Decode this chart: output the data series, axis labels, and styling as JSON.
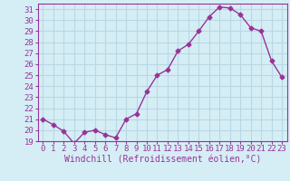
{
  "x": [
    0,
    1,
    2,
    3,
    4,
    5,
    6,
    7,
    8,
    9,
    10,
    11,
    12,
    13,
    14,
    15,
    16,
    17,
    18,
    19,
    20,
    21,
    22,
    23
  ],
  "y": [
    21.0,
    20.5,
    19.9,
    18.8,
    19.8,
    20.0,
    19.6,
    19.3,
    21.0,
    21.5,
    23.5,
    25.0,
    25.5,
    27.2,
    27.8,
    29.0,
    30.3,
    31.2,
    31.1,
    30.5,
    29.3,
    29.0,
    26.3,
    24.8
  ],
  "line_color": "#993399",
  "marker": "D",
  "marker_size": 2.5,
  "xlabel": "Windchill (Refroidissement éolien,°C)",
  "ylabel": "",
  "title": "",
  "xlim": [
    -0.5,
    23.5
  ],
  "ylim": [
    19,
    31.5
  ],
  "yticks": [
    19,
    20,
    21,
    22,
    23,
    24,
    25,
    26,
    27,
    28,
    29,
    30,
    31
  ],
  "xticks": [
    0,
    1,
    2,
    3,
    4,
    5,
    6,
    7,
    8,
    9,
    10,
    11,
    12,
    13,
    14,
    15,
    16,
    17,
    18,
    19,
    20,
    21,
    22,
    23
  ],
  "bg_color": "#d5eef5",
  "grid_color": "#b8d8e4",
  "font_color": "#993399",
  "font_family": "monospace",
  "font_size": 6.5,
  "xlabel_fontsize": 7.0
}
